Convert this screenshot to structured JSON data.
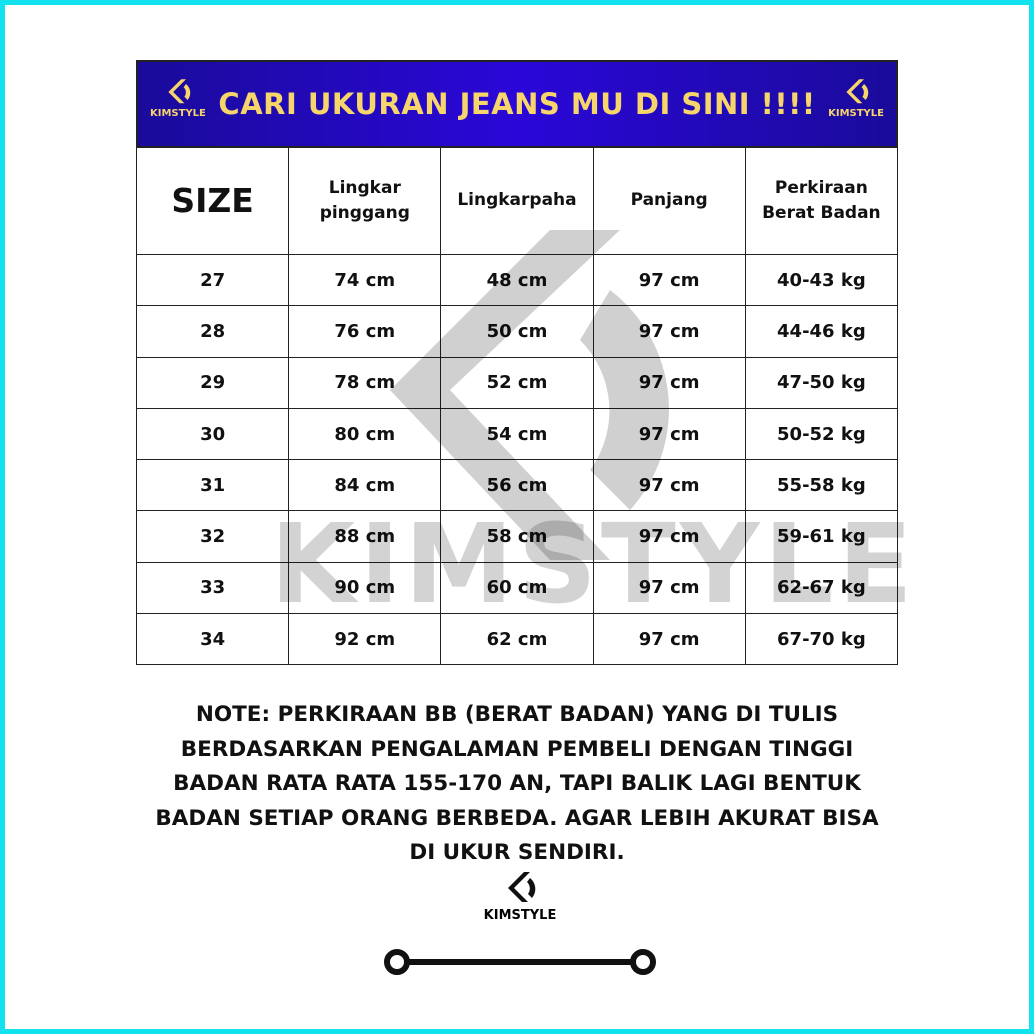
{
  "header": {
    "title": "CARI UKURAN JEANS MU DI SINI !!!!",
    "brand": "KIMSTYLE"
  },
  "colors": {
    "border": "#13e3ee",
    "header_bg": "#2a07d8",
    "header_text": "#f6d56a"
  },
  "table": {
    "columns": [
      "SIZE",
      "Lingkar pinggang",
      "Lingkarpaha",
      "Panjang",
      "Perkiraan Berat Badan"
    ],
    "rows": [
      [
        "27",
        "74 cm",
        "48 cm",
        "97 cm",
        "40-43 kg"
      ],
      [
        "28",
        "76 cm",
        "50 cm",
        "97 cm",
        "44-46 kg"
      ],
      [
        "29",
        "78 cm",
        "52 cm",
        "97 cm",
        "47-50 kg"
      ],
      [
        "30",
        "80 cm",
        "54 cm",
        "97 cm",
        "50-52 kg"
      ],
      [
        "31",
        "84 cm",
        "56 cm",
        "97 cm",
        "55-58 kg"
      ],
      [
        "32",
        "88 cm",
        "58 cm",
        "97 cm",
        "59-61 kg"
      ],
      [
        "33",
        "90 cm",
        "60 cm",
        "97 cm",
        "62-67 kg"
      ],
      [
        "34",
        "92 cm",
        "62 cm",
        "97 cm",
        "67-70 kg"
      ]
    ]
  },
  "watermark": "KIMSTYLE",
  "note": "NOTE: PERKIRAAN BB (BERAT BADAN) YANG DI TULIS BERDASARKAN PENGALAMAN PEMBELI DENGAN TINGGI BADAN RATA RATA 155-170 AN, TAPI BALIK LAGI BENTUK BADAN SETIAP ORANG BERBEDA. AGAR LEBIH AKURAT BISA DI UKUR SENDIRI.",
  "footer": {
    "brand": "KIMSTYLE"
  }
}
